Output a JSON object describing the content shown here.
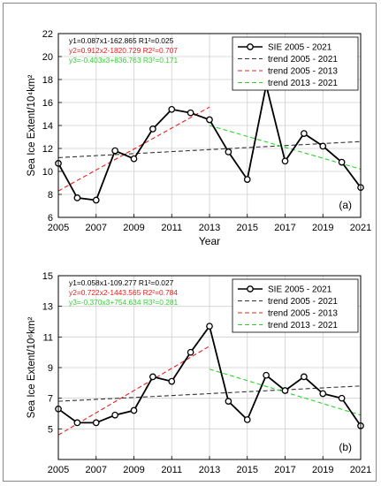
{
  "chart_data": [
    {
      "type": "line",
      "panel_label": "(a)",
      "xlabel": "Year",
      "ylabel": "Sea Ice Extent/10⁴km²",
      "xlim": [
        2005,
        2021
      ],
      "ylim": [
        6,
        22
      ],
      "xticks": [
        2005,
        2007,
        2009,
        2011,
        2013,
        2015,
        2017,
        2019,
        2021
      ],
      "yticks": [
        6,
        8,
        10,
        12,
        14,
        16,
        18,
        20,
        22
      ],
      "grid": true,
      "legend_position": "top-right",
      "equations": [
        {
          "text": "y1=0.087x1-162.865  R1²=0.025",
          "color": "#000000"
        },
        {
          "text": "y2=0.912x2-1820.729  R2²=0.707",
          "color": "#e8201e"
        },
        {
          "text": "y3=-0.403x3+836.763  R3²=0.171",
          "color": "#2ed42e"
        }
      ],
      "series": [
        {
          "name": "SIE 2005 - 2021",
          "style": "solid-circle",
          "color": "#000000",
          "x": [
            2005,
            2006,
            2007,
            2008,
            2009,
            2010,
            2011,
            2012,
            2013,
            2014,
            2015,
            2016,
            2017,
            2018,
            2019,
            2020,
            2021
          ],
          "y": [
            10.7,
            7.7,
            7.5,
            11.8,
            11.1,
            13.7,
            15.4,
            15.1,
            14.5,
            11.7,
            9.3,
            17.5,
            10.9,
            13.3,
            12.2,
            10.8,
            8.6
          ]
        },
        {
          "name": "trend 2005 - 2021",
          "style": "dashed",
          "color": "#333333",
          "x": [
            2005,
            2021
          ],
          "y": [
            11.2,
            12.6
          ]
        },
        {
          "name": "trend 2005 - 2013",
          "style": "dashed",
          "color": "#e8201e",
          "x": [
            2005,
            2013
          ],
          "y": [
            8.3,
            15.6
          ]
        },
        {
          "name": "trend 2013 - 2021",
          "style": "dashed",
          "color": "#2ed42e",
          "x": [
            2013,
            2021
          ],
          "y": [
            14.0,
            10.2
          ]
        }
      ]
    },
    {
      "type": "line",
      "panel_label": "(b)",
      "xlabel": "",
      "ylabel": "Sea Ice Extent/10⁶km²",
      "xlim": [
        2005,
        2021
      ],
      "ylim": [
        3,
        15
      ],
      "xticks": [
        2005,
        2007,
        2009,
        2011,
        2013,
        2015,
        2017,
        2019,
        2021
      ],
      "yticks": [
        5,
        7,
        9,
        11,
        13,
        15
      ],
      "grid": true,
      "legend_position": "top-right",
      "equations": [
        {
          "text": "y1=0.058x1-109.277  R1²=0.027",
          "color": "#000000"
        },
        {
          "text": "y2=0.722x2-1443.565  R2²=0.784",
          "color": "#e8201e"
        },
        {
          "text": "y3=-0.370x3+754.634  R3²=0.281",
          "color": "#2ed42e"
        }
      ],
      "series": [
        {
          "name": "SIE 2005 - 2021",
          "style": "solid-circle",
          "color": "#000000",
          "x": [
            2005,
            2006,
            2007,
            2008,
            2009,
            2010,
            2011,
            2012,
            2013,
            2014,
            2015,
            2016,
            2017,
            2018,
            2019,
            2020,
            2021
          ],
          "y": [
            6.3,
            5.4,
            5.4,
            5.9,
            6.2,
            8.4,
            8.1,
            10.0,
            11.7,
            6.8,
            5.6,
            8.5,
            7.5,
            8.4,
            7.3,
            7.0,
            5.2
          ]
        },
        {
          "name": "trend 2005 - 2021",
          "style": "dashed",
          "color": "#333333",
          "x": [
            2005,
            2021
          ],
          "y": [
            6.8,
            7.8
          ]
        },
        {
          "name": "trend 2005 - 2013",
          "style": "dashed",
          "color": "#e8201e",
          "x": [
            2005,
            2013
          ],
          "y": [
            4.6,
            10.4
          ]
        },
        {
          "name": "trend 2013 - 2021",
          "style": "dashed",
          "color": "#2ed42e",
          "x": [
            2013,
            2021
          ],
          "y": [
            8.9,
            5.9
          ]
        }
      ]
    }
  ]
}
